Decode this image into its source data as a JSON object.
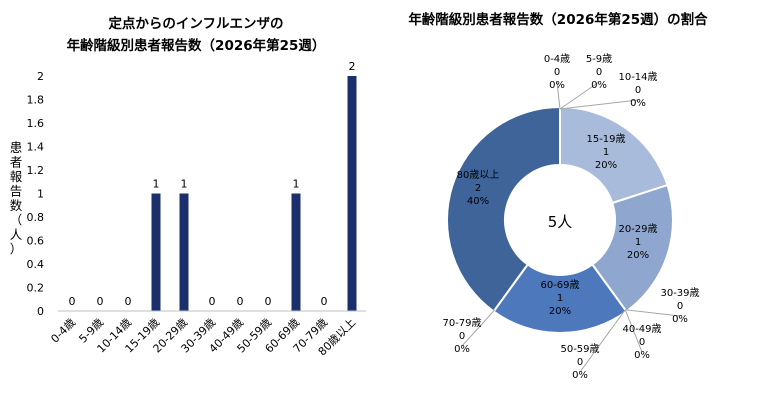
{
  "chart_data": [
    {
      "type": "bar",
      "title_lines": [
        "定点からのインフルエンザの",
        "年齢階級別患者報告数（2026年第25週）"
      ],
      "ylabel": "患者報告数（人）",
      "xlabel": "",
      "ylim": [
        0,
        2
      ],
      "yticks": [
        "0",
        "0.2",
        "0.4",
        "0.6",
        "0.8",
        "1",
        "1.2",
        "1.4",
        "1.6",
        "1.8",
        "2"
      ],
      "categories": [
        "0-4歳",
        "5-9歳",
        "10-14歳",
        "15-19歳",
        "20-29歳",
        "30-39歳",
        "40-49歳",
        "50-59歳",
        "60-69歳",
        "70-79歳",
        "80歳以上"
      ],
      "values": [
        0,
        0,
        0,
        1,
        1,
        0,
        0,
        0,
        1,
        0,
        2
      ],
      "data_labels": [
        "0",
        "0",
        "0",
        "1",
        "1",
        "0",
        "0",
        "0",
        "1",
        "0",
        "2"
      ],
      "color": "#1a2f6b",
      "grid": false,
      "legend": "none"
    },
    {
      "type": "pie",
      "variant": "donut",
      "title": "年齢階級別患者報告数（2026年第25週）の割合",
      "center_label": "5人",
      "slices": [
        {
          "name": "0-4歳",
          "value": 0,
          "count_label": "0",
          "pct": "0%",
          "color": "#c5d2e8"
        },
        {
          "name": "5-9歳",
          "value": 0,
          "count_label": "0",
          "pct": "0%",
          "color": "#bccbe4"
        },
        {
          "name": "10-14歳",
          "value": 0,
          "count_label": "0",
          "pct": "0%",
          "color": "#b3c4e0"
        },
        {
          "name": "15-19歳",
          "value": 1,
          "count_label": "1",
          "pct": "20%",
          "color": "#a8bbdb"
        },
        {
          "name": "20-29歳",
          "value": 1,
          "count_label": "1",
          "pct": "20%",
          "color": "#8fa7cf"
        },
        {
          "name": "30-39歳",
          "value": 0,
          "count_label": "0",
          "pct": "0%",
          "color": "#7d98c6"
        },
        {
          "name": "40-49歳",
          "value": 0,
          "count_label": "0",
          "pct": "0%",
          "color": "#6c8bbe"
        },
        {
          "name": "50-59歳",
          "value": 0,
          "count_label": "0",
          "pct": "0%",
          "color": "#5d80ba"
        },
        {
          "name": "60-69歳",
          "value": 1,
          "count_label": "1",
          "pct": "20%",
          "color": "#4d78bb"
        },
        {
          "name": "70-79歳",
          "value": 0,
          "count_label": "0",
          "pct": "0%",
          "color": "#3f68a3"
        },
        {
          "name": "80歳以上",
          "value": 2,
          "count_label": "2",
          "pct": "40%",
          "color": "#3e6499"
        }
      ],
      "legend": "none"
    }
  ]
}
